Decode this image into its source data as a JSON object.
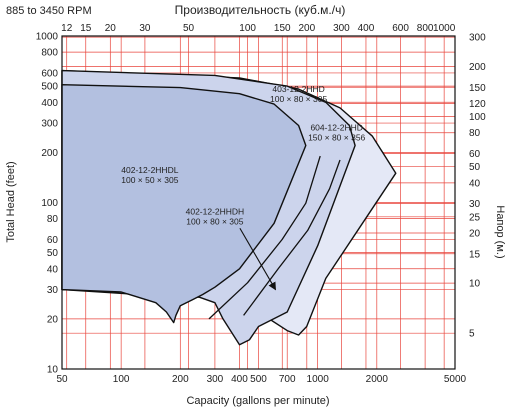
{
  "speed_note": "885 to 3450 RPM",
  "chart_data": {
    "type": "area",
    "title_top": "Производительность (куб.м./ч)",
    "xlabel": "Capacity (gallons per minute)",
    "ylabel_left": "Total Head (feet)",
    "ylabel_right": "Напор (м.)",
    "x_scale": "log",
    "y_scale": "log",
    "xlim": [
      50,
      5000
    ],
    "ylim": [
      10,
      1000
    ],
    "grid": true,
    "colors": {
      "grid": "#e8453c",
      "frame": "#111111",
      "curve_outline": "#111111",
      "region_dark": "#b3c0e0",
      "region_mid": "#ccd4ec",
      "region_light": "#e4e8f6"
    },
    "x_ticks": [
      50,
      100,
      200,
      300,
      400,
      500,
      700,
      1000,
      2000,
      5000
    ],
    "x_tick_labels": [
      "50",
      "100",
      "200",
      "300",
      "400",
      "500",
      "700",
      "1000",
      "2000",
      "5000"
    ],
    "y_ticks": [
      10,
      20,
      30,
      40,
      50,
      60,
      80,
      100,
      200,
      300,
      400,
      500,
      600,
      800,
      1000
    ],
    "y_tick_labels": [
      "10",
      "20",
      "30",
      "40",
      "50",
      "60",
      "80",
      "100",
      "200",
      "300",
      "400",
      "500",
      "600",
      "800",
      "1000"
    ],
    "top_ticks": [
      12,
      15,
      20,
      30,
      50,
      100,
      150,
      200,
      300,
      400,
      600,
      800,
      1000
    ],
    "top_tick_labels": [
      "12",
      "15",
      "20",
      "30",
      "50",
      "100",
      "150",
      "200",
      "300",
      "400",
      "600",
      "800",
      "1000"
    ],
    "right_ticks": [
      5,
      10,
      15,
      20,
      25,
      30,
      40,
      50,
      60,
      80,
      100,
      120,
      150,
      200,
      300
    ],
    "right_tick_labels": [
      "5",
      "10",
      "15",
      "20",
      "25",
      "30",
      "40",
      "50",
      "60",
      "80",
      "100",
      "120",
      "150",
      "200",
      "300"
    ],
    "regions": [
      {
        "name": "604-12-2HHD",
        "label_line1": "604-12-2HHD",
        "label_line2": "150 × 80 × 356",
        "label_at": [
          1250,
          270
        ],
        "fill": "#e4e8f6",
        "outline": [
          [
            50,
            620
          ],
          [
            400,
            560
          ],
          [
            800,
            480
          ],
          [
            1300,
            370
          ],
          [
            1900,
            250
          ],
          [
            2500,
            150
          ],
          [
            1100,
            35
          ],
          [
            880,
            18
          ],
          [
            800,
            16
          ],
          [
            700,
            17
          ],
          [
            500,
            22
          ],
          [
            430,
            26
          ],
          [
            380,
            28
          ],
          [
            300,
            31
          ],
          [
            200,
            30
          ],
          [
            50,
            30
          ]
        ]
      },
      {
        "name": "403-12-2HHD",
        "label_line1": "403-12-2HHD",
        "label_line2": "100 × 80 × 305",
        "label_at": [
          800,
          460
        ],
        "fill": "#ccd4ec",
        "outline": [
          [
            50,
            620
          ],
          [
            300,
            580
          ],
          [
            700,
            500
          ],
          [
            1100,
            400
          ],
          [
            1450,
            290
          ],
          [
            1550,
            220
          ],
          [
            1000,
            55
          ],
          [
            700,
            22
          ],
          [
            500,
            18
          ],
          [
            450,
            15
          ],
          [
            400,
            14
          ],
          [
            330,
            20
          ],
          [
            300,
            25
          ],
          [
            250,
            27
          ],
          [
            200,
            27
          ],
          [
            50,
            30
          ]
        ]
      },
      {
        "name": "402-12-2HHDL",
        "label_line1": "402-12-2HHDL",
        "label_line2": "100 × 50 × 305",
        "label_at": [
          140,
          150
        ],
        "fill": "#b3c0e0",
        "outline": [
          [
            50,
            510
          ],
          [
            200,
            490
          ],
          [
            400,
            450
          ],
          [
            600,
            390
          ],
          [
            800,
            290
          ],
          [
            870,
            220
          ],
          [
            600,
            75
          ],
          [
            400,
            40
          ],
          [
            300,
            31
          ],
          [
            260,
            28
          ],
          [
            230,
            26
          ],
          [
            200,
            24
          ],
          [
            190,
            21
          ],
          [
            185,
            19
          ],
          [
            170,
            22
          ],
          [
            150,
            25
          ],
          [
            100,
            29
          ],
          [
            50,
            30
          ]
        ]
      }
    ],
    "interior_curves": [
      {
        "name": "402-12-2HHDH",
        "points": [
          [
            280,
            20
          ],
          [
            440,
            33
          ],
          [
            660,
            60
          ],
          [
            870,
            99
          ],
          [
            1030,
            190
          ]
        ]
      },
      {
        "name": "604-12-2HHD inner",
        "points": [
          [
            420,
            21
          ],
          [
            630,
            40
          ],
          [
            890,
            68
          ],
          [
            1150,
            121
          ],
          [
            1300,
            180
          ]
        ]
      }
    ],
    "annotations": [
      {
        "text_line1": "402-12-2HHDH",
        "text_line2": "100 × 80 × 305",
        "at": [
          300,
          85
        ],
        "arrow_to": [
          610,
          30
        ]
      }
    ]
  }
}
